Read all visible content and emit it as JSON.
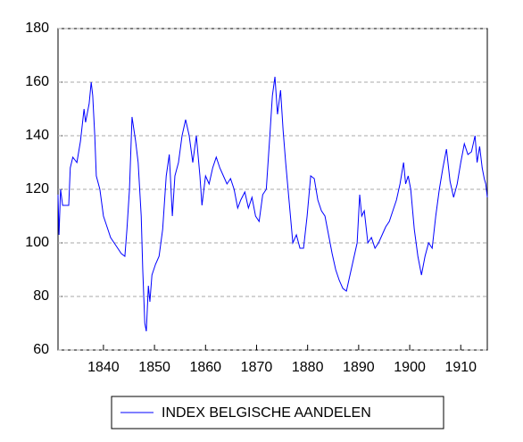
{
  "chart_data": {
    "type": "line",
    "x": [
      1831.1,
      1831.3,
      1831.6,
      1832.0,
      1833.2,
      1833.5,
      1834.0,
      1834.8,
      1835.5,
      1836.2,
      1836.5,
      1837.2,
      1837.6,
      1837.9,
      1838.3,
      1838.6,
      1839.3,
      1840.0,
      1840.7,
      1841.4,
      1842.1,
      1842.8,
      1843.5,
      1844.2,
      1844.6,
      1845.1,
      1845.6,
      1846.3,
      1846.8,
      1847.4,
      1847.7,
      1848.1,
      1848.4,
      1848.8,
      1849.1,
      1849.5,
      1850.2,
      1850.9,
      1851.6,
      1852.3,
      1852.9,
      1853.5,
      1854.0,
      1854.7,
      1855.4,
      1856.1,
      1856.8,
      1857.5,
      1858.2,
      1858.9,
      1859.3,
      1860.0,
      1860.7,
      1861.4,
      1862.1,
      1862.8,
      1863.5,
      1864.2,
      1864.9,
      1865.6,
      1866.3,
      1866.9,
      1867.7,
      1868.4,
      1869.1,
      1869.8,
      1870.5,
      1871.2,
      1871.9,
      1872.6,
      1873.1,
      1873.6,
      1874.1,
      1874.7,
      1875.2,
      1875.7,
      1876.4,
      1877.1,
      1877.8,
      1878.5,
      1879.2,
      1879.9,
      1880.6,
      1881.3,
      1882.0,
      1882.7,
      1883.4,
      1884.1,
      1884.8,
      1885.5,
      1886.2,
      1886.9,
      1887.6,
      1888.3,
      1889.0,
      1889.7,
      1890.2,
      1890.6,
      1891.1,
      1891.8,
      1892.5,
      1893.2,
      1893.9,
      1894.6,
      1895.3,
      1896.0,
      1896.7,
      1897.4,
      1898.1,
      1898.8,
      1899.2,
      1899.7,
      1900.2,
      1900.9,
      1901.6,
      1902.3,
      1903.0,
      1903.7,
      1904.4,
      1905.1,
      1905.8,
      1906.5,
      1907.2,
      1907.9,
      1908.6,
      1909.3,
      1910.0,
      1910.7,
      1911.4,
      1912.1,
      1912.8,
      1913.2,
      1913.7,
      1914.2,
      1914.6,
      1914.9,
      1915.2
    ],
    "series": [
      {
        "name": "INDEX BELGISCHE AANDELEN",
        "color": "#0000ff",
        "values": [
          118,
          103,
          120,
          114,
          114,
          128,
          132,
          130,
          138,
          150,
          145,
          152,
          160,
          155,
          140,
          125,
          120,
          110,
          106,
          102,
          100,
          98,
          96,
          95,
          105,
          120,
          147,
          138,
          130,
          110,
          90,
          70,
          67,
          84,
          78,
          88,
          92,
          95,
          105,
          125,
          133,
          110,
          125,
          130,
          140,
          146,
          140,
          130,
          140,
          125,
          114,
          125,
          122,
          128,
          132,
          128,
          125,
          122,
          124,
          120,
          113,
          116,
          119,
          113,
          117,
          110,
          108,
          118,
          120,
          140,
          155,
          162,
          148,
          157,
          142,
          130,
          115,
          100,
          103,
          98,
          98,
          110,
          125,
          124,
          116,
          112,
          110,
          103,
          96,
          90,
          86,
          83,
          82,
          88,
          94,
          100,
          118,
          110,
          112,
          100,
          102,
          98,
          100,
          103,
          106,
          108,
          112,
          116,
          122,
          130,
          122,
          125,
          120,
          105,
          95,
          88,
          95,
          100,
          98,
          110,
          120,
          128,
          135,
          123,
          117,
          122,
          130,
          137,
          133,
          134,
          140,
          130,
          136,
          128,
          124,
          122,
          117
        ]
      }
    ],
    "xlim": [
      1831.1,
      1915.2
    ],
    "ylim": [
      60,
      180
    ],
    "xticks": [
      1840,
      1850,
      1860,
      1870,
      1880,
      1890,
      1900,
      1910
    ],
    "yticks": [
      60,
      80,
      100,
      120,
      140,
      160,
      180
    ],
    "grid": true
  }
}
